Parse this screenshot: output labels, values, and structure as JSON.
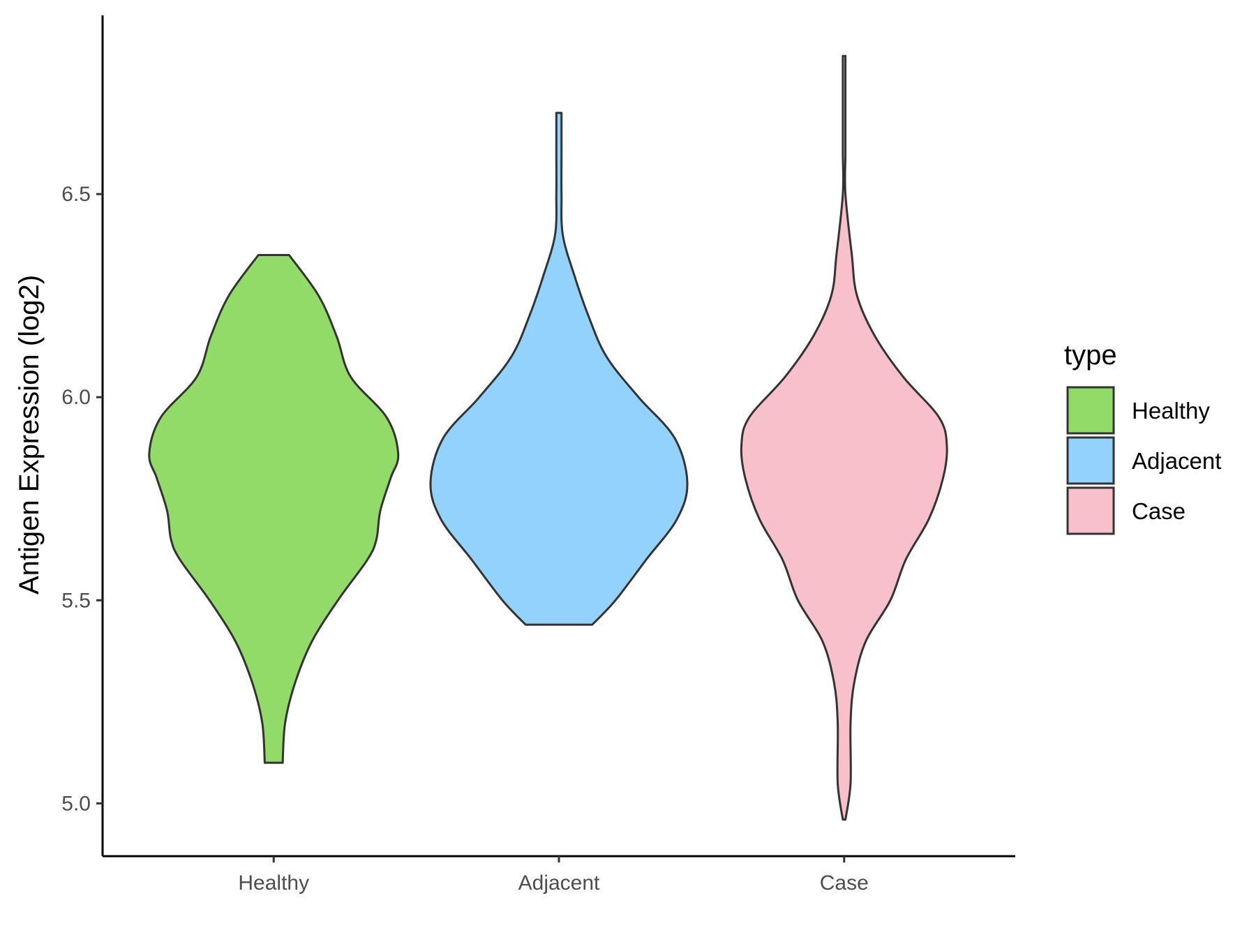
{
  "chart_data": {
    "type": "violin",
    "title": "",
    "xlabel": "",
    "ylabel": "Antigen Expression (log2)",
    "ylim": [
      4.87,
      6.94
    ],
    "yticks": [
      "5.0",
      "5.5",
      "6.0",
      "6.5"
    ],
    "ytick_values": [
      5.0,
      5.5,
      6.0,
      6.5
    ],
    "categories": [
      "Healthy",
      "Adjacent",
      "Case"
    ],
    "legend": {
      "title": "type",
      "position": "right",
      "items": [
        {
          "label": "Healthy",
          "color": "#93DB69"
        },
        {
          "label": "Adjacent",
          "color": "#93D2FD"
        },
        {
          "label": "Case",
          "color": "#F7C0CB"
        }
      ]
    },
    "outline_color": "#333333",
    "series": [
      {
        "category": "Healthy",
        "color": "#93DB69",
        "min": 5.1,
        "max": 6.35,
        "density_profile": [
          [
            5.1,
            0.07
          ],
          [
            5.2,
            0.09
          ],
          [
            5.3,
            0.17
          ],
          [
            5.4,
            0.3
          ],
          [
            5.5,
            0.5
          ],
          [
            5.6,
            0.73
          ],
          [
            5.65,
            0.8
          ],
          [
            5.72,
            0.83
          ],
          [
            5.8,
            0.91
          ],
          [
            5.86,
            0.97
          ],
          [
            5.95,
            0.88
          ],
          [
            6.05,
            0.6
          ],
          [
            6.15,
            0.49
          ],
          [
            6.25,
            0.35
          ],
          [
            6.35,
            0.12
          ]
        ]
      },
      {
        "category": "Adjacent",
        "color": "#93D2FD",
        "min": 5.44,
        "max": 6.7,
        "density_profile": [
          [
            5.44,
            0.26
          ],
          [
            5.5,
            0.44
          ],
          [
            5.6,
            0.68
          ],
          [
            5.7,
            0.92
          ],
          [
            5.79,
            1.0
          ],
          [
            5.9,
            0.9
          ],
          [
            6.0,
            0.62
          ],
          [
            6.1,
            0.37
          ],
          [
            6.2,
            0.23
          ],
          [
            6.3,
            0.12
          ],
          [
            6.4,
            0.03
          ],
          [
            6.5,
            0.02
          ],
          [
            6.6,
            0.02
          ],
          [
            6.7,
            0.02
          ]
        ]
      },
      {
        "category": "Case",
        "color": "#F7C0CB",
        "min": 4.96,
        "max": 6.84,
        "density_profile": [
          [
            4.96,
            0.01
          ],
          [
            5.05,
            0.05
          ],
          [
            5.2,
            0.05
          ],
          [
            5.3,
            0.08
          ],
          [
            5.4,
            0.17
          ],
          [
            5.5,
            0.36
          ],
          [
            5.6,
            0.48
          ],
          [
            5.7,
            0.66
          ],
          [
            5.8,
            0.77
          ],
          [
            5.88,
            0.8
          ],
          [
            5.95,
            0.74
          ],
          [
            6.05,
            0.46
          ],
          [
            6.15,
            0.24
          ],
          [
            6.25,
            0.1
          ],
          [
            6.35,
            0.06
          ],
          [
            6.5,
            0.01
          ],
          [
            6.6,
            0.01
          ],
          [
            6.7,
            0.01
          ],
          [
            6.84,
            0.01
          ]
        ]
      }
    ]
  }
}
